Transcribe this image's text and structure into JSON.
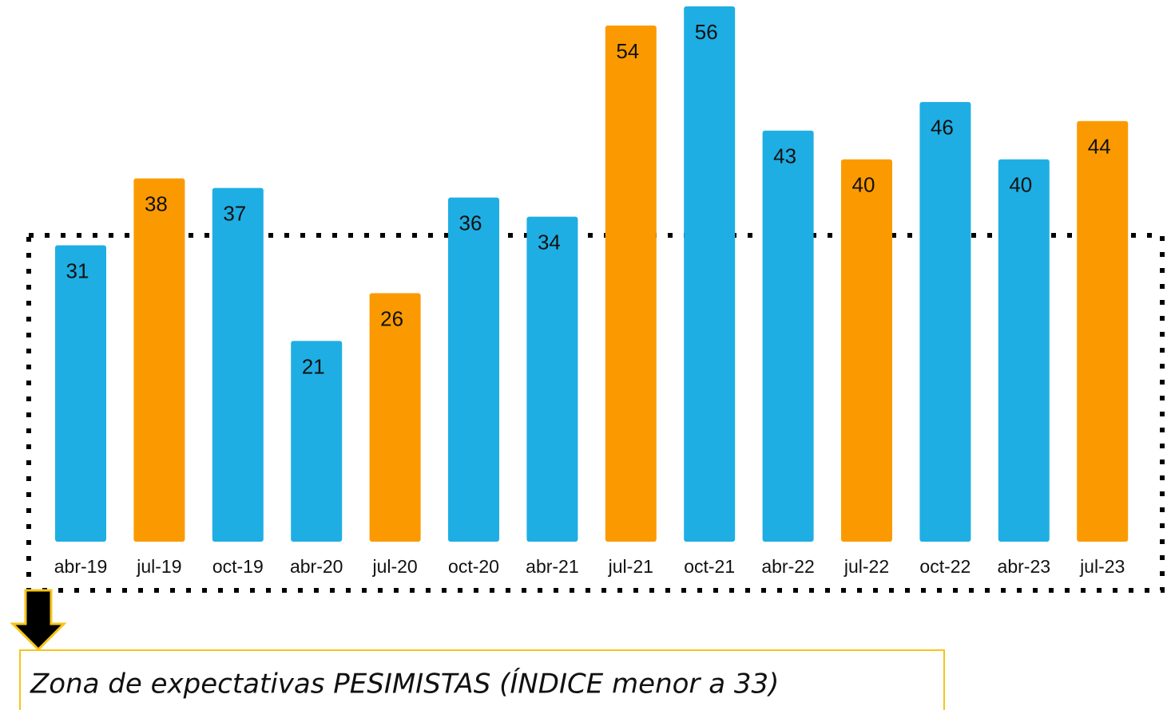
{
  "chart_data": {
    "type": "bar",
    "categories": [
      "abr-19",
      "jul-19",
      "oct-19",
      "abr-20",
      "jul-20",
      "oct-20",
      "abr-21",
      "jul-21",
      "oct-21",
      "abr-22",
      "jul-22",
      "oct-22",
      "abr-23",
      "jul-23"
    ],
    "values": [
      31,
      38,
      37,
      21,
      26,
      36,
      34,
      54,
      56,
      43,
      40,
      46,
      40,
      44
    ],
    "colors": [
      "#1eaee3",
      "#fb9a00",
      "#1eaee3",
      "#1eaee3",
      "#fb9a00",
      "#1eaee3",
      "#1eaee3",
      "#fb9a00",
      "#1eaee3",
      "#1eaee3",
      "#fb9a00",
      "#1eaee3",
      "#1eaee3",
      "#fb9a00"
    ],
    "annotation": "Zona de expectativas PESIMISTAS (ÍNDICE menor a 33)"
  }
}
